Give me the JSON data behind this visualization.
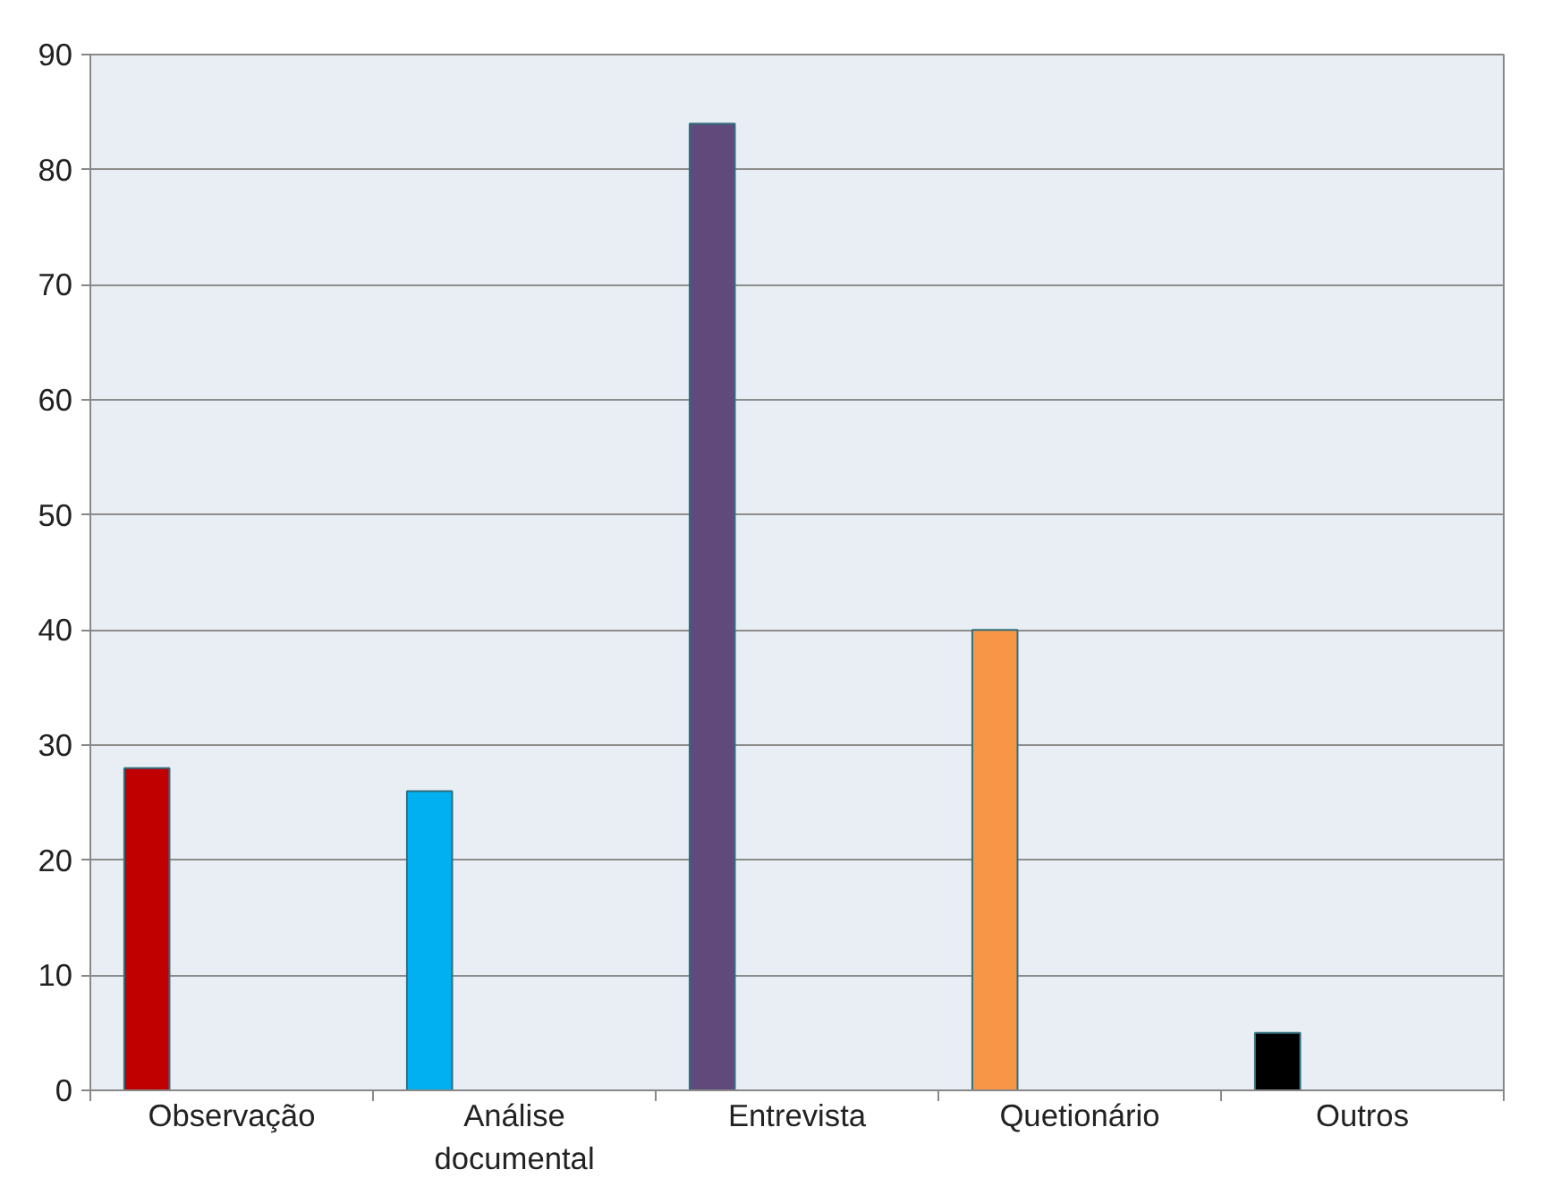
{
  "chart_data": {
    "type": "bar",
    "categories": [
      "Observação",
      "Análise documental",
      "Entrevista",
      "Quetionário",
      "Outros"
    ],
    "values": [
      28,
      26,
      84,
      40,
      5
    ],
    "colors": [
      "#c00000",
      "#00b0f0",
      "#604a7b",
      "#f79646",
      "#000000"
    ],
    "ylim": [
      0,
      90
    ],
    "yticks": [
      0,
      10,
      20,
      30,
      40,
      50,
      60,
      70,
      80,
      90
    ],
    "grid": "y"
  }
}
